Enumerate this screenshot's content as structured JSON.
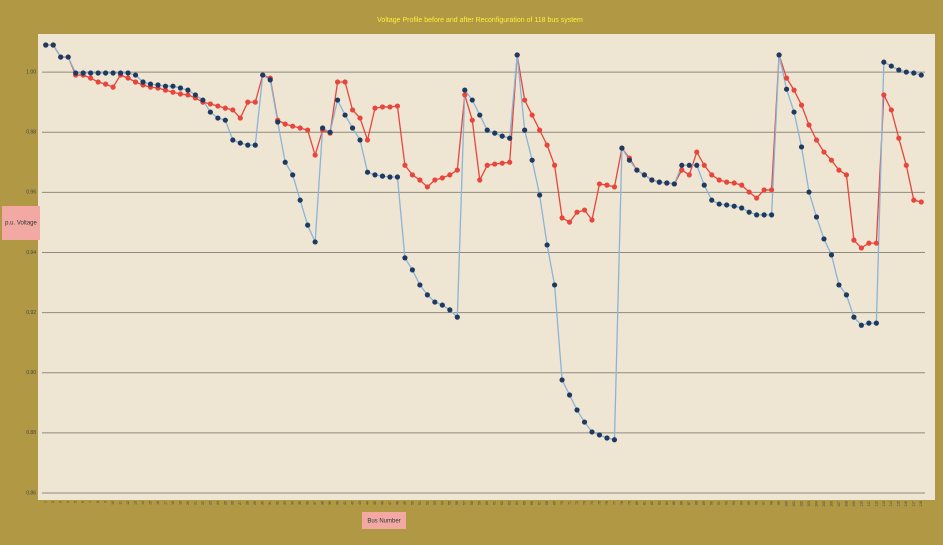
{
  "chart_data": {
    "type": "line",
    "title": "Voltage Profile before and after Reconfiguration of 118 bus system",
    "y_label": "p.u. Voltage",
    "x_label": "Bus Number",
    "categories": [
      1,
      2,
      3,
      4,
      5,
      6,
      7,
      8,
      9,
      10,
      11,
      12,
      13,
      14,
      15,
      16,
      17,
      18,
      19,
      20,
      21,
      22,
      23,
      24,
      25,
      26,
      27,
      28,
      29,
      30,
      31,
      32,
      33,
      34,
      35,
      36,
      37,
      38,
      39,
      40,
      41,
      42,
      43,
      44,
      45,
      46,
      47,
      48,
      49,
      50,
      51,
      52,
      53,
      54,
      55,
      56,
      57,
      58,
      59,
      60,
      61,
      62,
      63,
      64,
      65,
      66,
      67,
      68,
      69,
      70,
      71,
      72,
      73,
      74,
      75,
      76,
      77,
      78,
      79,
      80,
      81,
      82,
      83,
      84,
      85,
      86,
      87,
      88,
      89,
      90,
      91,
      92,
      93,
      94,
      95,
      96,
      97,
      98,
      99,
      100,
      101,
      102,
      103,
      104,
      105,
      106,
      107,
      108,
      109,
      110,
      111,
      112,
      113,
      114,
      115,
      116,
      117,
      118
    ],
    "series": [
      {
        "color": "#e8453c",
        "line_color": "#e8453c",
        "values": [
          1.009,
          1.009,
          1.005,
          1.005,
          0.999,
          0.999,
          0.998,
          0.9967,
          0.996,
          0.995,
          0.999,
          0.998,
          0.9967,
          0.9957,
          0.995,
          0.9947,
          0.994,
          0.9933,
          0.9927,
          0.9924,
          0.9914,
          0.99,
          0.9894,
          0.9887,
          0.988,
          0.9874,
          0.9847,
          0.99,
          0.99,
          0.999,
          0.998,
          0.984,
          0.9827,
          0.982,
          0.9814,
          0.9807,
          0.9724,
          0.9807,
          0.9797,
          0.9967,
          0.9967,
          0.9874,
          0.9847,
          0.9774,
          0.988,
          0.9884,
          0.9884,
          0.9887,
          0.969,
          0.9658,
          0.9641,
          0.9618,
          0.9641,
          0.9648,
          0.9658,
          0.9674,
          0.9924,
          0.984,
          0.9641,
          0.969,
          0.9694,
          0.9697,
          0.97,
          1.0057,
          0.9907,
          0.9857,
          0.9807,
          0.9757,
          0.969,
          0.9515,
          0.9501,
          0.9534,
          0.9541,
          0.9508,
          0.9628,
          0.9624,
          0.9618,
          0.9747,
          0.9714,
          0.9674,
          0.9658,
          0.9641,
          0.9634,
          0.9631,
          0.9628,
          0.9674,
          0.9658,
          0.9734,
          0.969,
          0.9658,
          0.9641,
          0.9634,
          0.9631,
          0.9624,
          0.9601,
          0.9581,
          0.9608,
          0.9608,
          1.0057,
          0.998,
          0.994,
          0.989,
          0.9824,
          0.9774,
          0.9734,
          0.9707,
          0.9674,
          0.9658,
          0.9441,
          0.9415,
          0.9431,
          0.9431,
          0.9924,
          0.9874,
          0.978,
          0.969,
          0.9574,
          0.9568
        ]
      },
      {
        "color": "#1f3a60",
        "line_color": "#8ab4d8",
        "values": [
          1.009,
          1.009,
          1.005,
          1.005,
          0.9997,
          0.9997,
          0.9997,
          0.9997,
          0.9997,
          0.9997,
          0.9997,
          0.9997,
          0.999,
          0.9967,
          0.996,
          0.9957,
          0.9953,
          0.9953,
          0.9947,
          0.994,
          0.9924,
          0.9907,
          0.9867,
          0.9847,
          0.984,
          0.9774,
          0.9764,
          0.9757,
          0.9757,
          0.999,
          0.9974,
          0.9834,
          0.97,
          0.9658,
          0.9574,
          0.9491,
          0.9435,
          0.9814,
          0.98,
          0.9907,
          0.9857,
          0.9814,
          0.9774,
          0.9667,
          0.9658,
          0.9654,
          0.9651,
          0.9651,
          0.9382,
          0.9342,
          0.9292,
          0.9259,
          0.9235,
          0.9225,
          0.9209,
          0.9185,
          0.994,
          0.9907,
          0.9857,
          0.9807,
          0.9797,
          0.9787,
          0.978,
          1.0057,
          0.9807,
          0.9707,
          0.9591,
          0.9425,
          0.9292,
          0.8976,
          0.8926,
          0.8876,
          0.8836,
          0.8803,
          0.8793,
          0.8783,
          0.8777,
          0.9747,
          0.9707,
          0.9674,
          0.9658,
          0.9641,
          0.9634,
          0.9631,
          0.9628,
          0.969,
          0.969,
          0.969,
          0.9624,
          0.9574,
          0.9561,
          0.9558,
          0.9554,
          0.9548,
          0.9534,
          0.9525,
          0.9525,
          0.9525,
          1.0057,
          0.9943,
          0.9867,
          0.9751,
          0.9601,
          0.9518,
          0.9445,
          0.9392,
          0.9292,
          0.9259,
          0.9185,
          0.9158,
          0.9165,
          0.9165,
          1.0033,
          1.002,
          1.0007,
          1.0,
          0.9997,
          0.999
        ]
      }
    ],
    "ylim": [
      0.86,
      1.012
    ],
    "yticks": [
      {
        "value": 0.86,
        "label": "0.86"
      },
      {
        "value": 0.88,
        "label": "0.88"
      },
      {
        "value": 0.9,
        "label": "0.90"
      },
      {
        "value": 0.92,
        "label": "0.92"
      },
      {
        "value": 0.94,
        "label": "0.94"
      },
      {
        "value": 0.96,
        "label": "0.96"
      },
      {
        "value": 0.98,
        "label": "0.98"
      },
      {
        "value": 1,
        "label": "1.00"
      }
    ],
    "grid": true
  }
}
